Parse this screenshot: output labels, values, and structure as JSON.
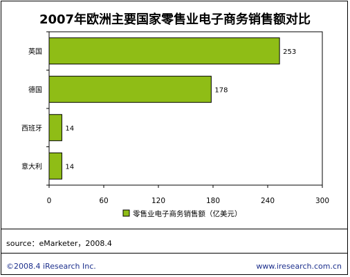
{
  "title": "2007年欧洲主要国家零售业电子商务销售额对比",
  "source": "source：eMarketer，2008.4",
  "copyright": "©2008.4  iResearch Inc.",
  "website": "www.iresearch.com.cn",
  "colors": {
    "bar_fill": "#8fbd16",
    "bar_stroke": "#000000",
    "footer_text": "#1b2e8c"
  },
  "chart_data": {
    "type": "bar",
    "orientation": "horizontal",
    "categories": [
      "英国",
      "德国",
      "西班牙",
      "意大利"
    ],
    "series": [
      {
        "name": "零售业电子商务销售额（亿美元）",
        "values": [
          253,
          178,
          14,
          14
        ]
      }
    ],
    "data_labels": [
      "253",
      "178",
      "14",
      "14"
    ],
    "xlim": [
      0,
      300
    ],
    "xticks": [
      0,
      60,
      120,
      180,
      240,
      300
    ],
    "xtick_labels": [
      "0",
      "60",
      "120",
      "180",
      "240",
      "300"
    ],
    "legend_position": "bottom",
    "grid": false
  }
}
